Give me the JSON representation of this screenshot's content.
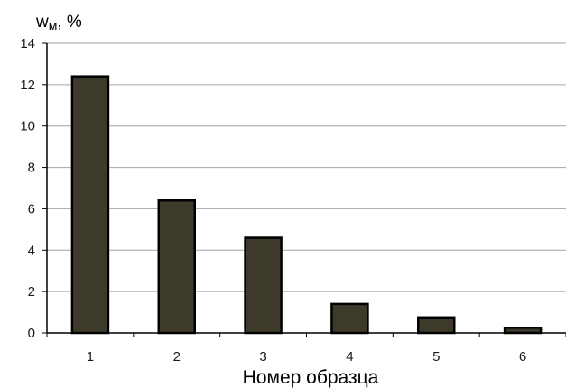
{
  "chart_data": {
    "type": "bar",
    "title": "",
    "ylabel_main": "w",
    "ylabel_sub": "м",
    "ylabel_suffix": ", %",
    "xlabel": "Номер образца",
    "categories": [
      "1",
      "2",
      "3",
      "4",
      "5",
      "6"
    ],
    "values": [
      12.4,
      6.4,
      4.6,
      1.4,
      0.75,
      0.25
    ],
    "ylim": [
      0,
      14
    ],
    "yticks": [
      "0",
      "2",
      "4",
      "6",
      "8",
      "10",
      "12",
      "14"
    ],
    "grid": true,
    "legend": "none",
    "colors": {
      "bar_fill": "#3d3a2b",
      "bar_stroke": "#000000",
      "grid": "#a6a6a6",
      "axis": "#000000"
    }
  }
}
